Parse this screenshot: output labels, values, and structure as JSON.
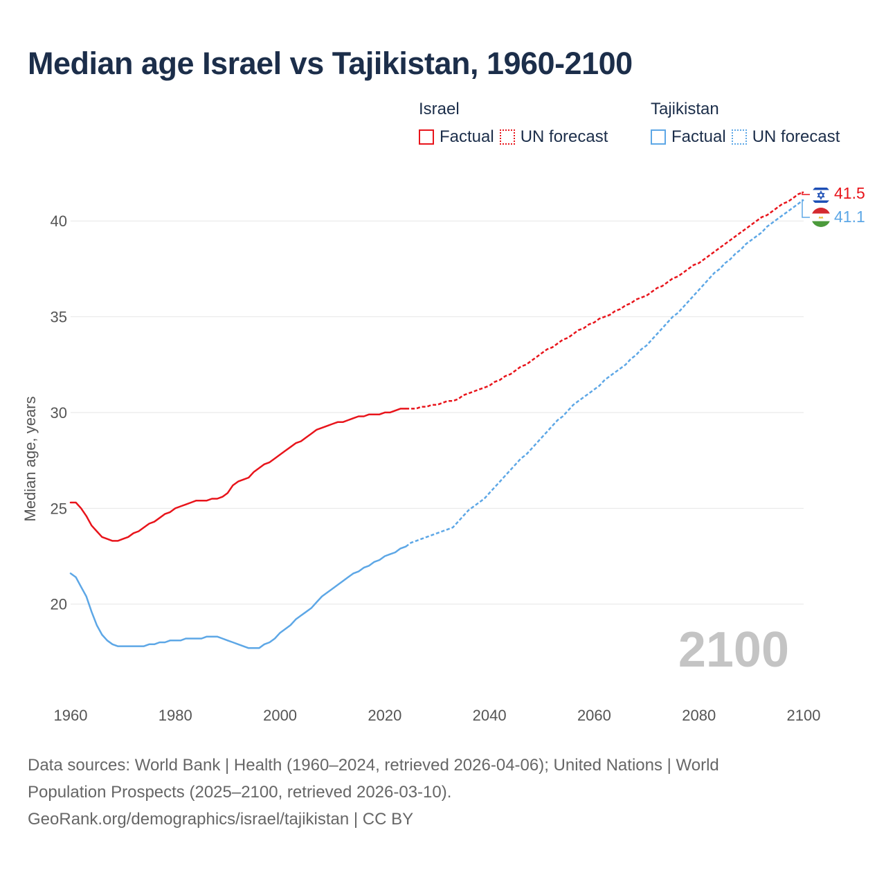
{
  "title": "Median age Israel vs Tajikistan, 1960-2100",
  "legend": {
    "israel": {
      "name": "Israel",
      "factual": "Factual",
      "forecast": "UN forecast",
      "color": "#e8141b"
    },
    "tajikistan": {
      "name": "Tajikistan",
      "factual": "Factual",
      "forecast": "UN forecast",
      "color": "#5da7e6"
    }
  },
  "year_watermark": "2100",
  "footer": {
    "line1": "Data sources: World Bank | Health (1960–2024, retrieved 2026-04-06); United Nations | World",
    "line2": "Population Prospects (2025–2100, retrieved 2026-03-10).",
    "line3": "GeoRank.org/demographics/israel/tajikistan | CC BY"
  },
  "chart_data": {
    "type": "line",
    "title": "Median age Israel vs Tajikistan, 1960-2100",
    "xlabel": "",
    "ylabel": "Median age, years",
    "xlim": [
      1960,
      2100
    ],
    "ylim": [
      15.4,
      42.5
    ],
    "xticks": [
      "1960",
      "1980",
      "2000",
      "2020",
      "2040",
      "2060",
      "2080",
      "2100"
    ],
    "yticks": [
      "20",
      "25",
      "30",
      "35",
      "40"
    ],
    "grid": true,
    "factual_end_year": 2024,
    "series": [
      {
        "name": "Israel",
        "color": "#e8141b",
        "end_label": "41.5",
        "flag": "israel-flag-icon",
        "points": [
          [
            1960,
            25.3
          ],
          [
            1961,
            25.3
          ],
          [
            1962,
            25.0
          ],
          [
            1963,
            24.6
          ],
          [
            1964,
            24.1
          ],
          [
            1965,
            23.8
          ],
          [
            1966,
            23.5
          ],
          [
            1967,
            23.4
          ],
          [
            1968,
            23.3
          ],
          [
            1969,
            23.3
          ],
          [
            1970,
            23.4
          ],
          [
            1971,
            23.5
          ],
          [
            1972,
            23.7
          ],
          [
            1973,
            23.8
          ],
          [
            1974,
            24.0
          ],
          [
            1975,
            24.2
          ],
          [
            1976,
            24.3
          ],
          [
            1977,
            24.5
          ],
          [
            1978,
            24.7
          ],
          [
            1979,
            24.8
          ],
          [
            1980,
            25.0
          ],
          [
            1981,
            25.1
          ],
          [
            1982,
            25.2
          ],
          [
            1983,
            25.3
          ],
          [
            1984,
            25.4
          ],
          [
            1985,
            25.4
          ],
          [
            1986,
            25.4
          ],
          [
            1987,
            25.5
          ],
          [
            1988,
            25.5
          ],
          [
            1989,
            25.6
          ],
          [
            1990,
            25.8
          ],
          [
            1991,
            26.2
          ],
          [
            1992,
            26.4
          ],
          [
            1993,
            26.5
          ],
          [
            1994,
            26.6
          ],
          [
            1995,
            26.9
          ],
          [
            1996,
            27.1
          ],
          [
            1997,
            27.3
          ],
          [
            1998,
            27.4
          ],
          [
            1999,
            27.6
          ],
          [
            2000,
            27.8
          ],
          [
            2001,
            28.0
          ],
          [
            2002,
            28.2
          ],
          [
            2003,
            28.4
          ],
          [
            2004,
            28.5
          ],
          [
            2005,
            28.7
          ],
          [
            2006,
            28.9
          ],
          [
            2007,
            29.1
          ],
          [
            2008,
            29.2
          ],
          [
            2009,
            29.3
          ],
          [
            2010,
            29.4
          ],
          [
            2011,
            29.5
          ],
          [
            2012,
            29.5
          ],
          [
            2013,
            29.6
          ],
          [
            2014,
            29.7
          ],
          [
            2015,
            29.8
          ],
          [
            2016,
            29.8
          ],
          [
            2017,
            29.9
          ],
          [
            2018,
            29.9
          ],
          [
            2019,
            29.9
          ],
          [
            2020,
            30.0
          ],
          [
            2021,
            30.0
          ],
          [
            2022,
            30.1
          ],
          [
            2023,
            30.2
          ],
          [
            2024,
            30.2
          ],
          [
            2025,
            30.2
          ],
          [
            2026,
            30.2
          ],
          [
            2027,
            30.3
          ],
          [
            2028,
            30.3
          ],
          [
            2029,
            30.4
          ],
          [
            2030,
            30.4
          ],
          [
            2031,
            30.5
          ],
          [
            2032,
            30.6
          ],
          [
            2033,
            30.6
          ],
          [
            2034,
            30.7
          ],
          [
            2035,
            30.9
          ],
          [
            2036,
            31.0
          ],
          [
            2037,
            31.1
          ],
          [
            2038,
            31.2
          ],
          [
            2039,
            31.3
          ],
          [
            2040,
            31.4
          ],
          [
            2041,
            31.6
          ],
          [
            2042,
            31.7
          ],
          [
            2043,
            31.9
          ],
          [
            2044,
            32.0
          ],
          [
            2045,
            32.2
          ],
          [
            2046,
            32.4
          ],
          [
            2047,
            32.5
          ],
          [
            2048,
            32.7
          ],
          [
            2049,
            32.9
          ],
          [
            2050,
            33.1
          ],
          [
            2051,
            33.3
          ],
          [
            2052,
            33.4
          ],
          [
            2053,
            33.6
          ],
          [
            2054,
            33.8
          ],
          [
            2055,
            33.9
          ],
          [
            2056,
            34.1
          ],
          [
            2057,
            34.3
          ],
          [
            2058,
            34.4
          ],
          [
            2059,
            34.6
          ],
          [
            2060,
            34.7
          ],
          [
            2061,
            34.9
          ],
          [
            2062,
            35.0
          ],
          [
            2063,
            35.1
          ],
          [
            2064,
            35.3
          ],
          [
            2065,
            35.4
          ],
          [
            2066,
            35.6
          ],
          [
            2067,
            35.7
          ],
          [
            2068,
            35.9
          ],
          [
            2069,
            36.0
          ],
          [
            2070,
            36.1
          ],
          [
            2071,
            36.3
          ],
          [
            2072,
            36.5
          ],
          [
            2073,
            36.6
          ],
          [
            2074,
            36.8
          ],
          [
            2075,
            37.0
          ],
          [
            2076,
            37.1
          ],
          [
            2077,
            37.3
          ],
          [
            2078,
            37.5
          ],
          [
            2079,
            37.7
          ],
          [
            2080,
            37.8
          ],
          [
            2081,
            38.0
          ],
          [
            2082,
            38.2
          ],
          [
            2083,
            38.4
          ],
          [
            2084,
            38.6
          ],
          [
            2085,
            38.8
          ],
          [
            2086,
            39.0
          ],
          [
            2087,
            39.2
          ],
          [
            2088,
            39.4
          ],
          [
            2089,
            39.6
          ],
          [
            2090,
            39.8
          ],
          [
            2091,
            40.0
          ],
          [
            2092,
            40.2
          ],
          [
            2093,
            40.3
          ],
          [
            2094,
            40.5
          ],
          [
            2095,
            40.7
          ],
          [
            2096,
            40.9
          ],
          [
            2097,
            41.0
          ],
          [
            2098,
            41.2
          ],
          [
            2099,
            41.4
          ],
          [
            2100,
            41.5
          ]
        ]
      },
      {
        "name": "Tajikistan",
        "color": "#5da7e6",
        "end_label": "41.1",
        "flag": "tajikistan-flag-icon",
        "points": [
          [
            1960,
            21.6
          ],
          [
            1961,
            21.4
          ],
          [
            1962,
            20.9
          ],
          [
            1963,
            20.4
          ],
          [
            1964,
            19.6
          ],
          [
            1965,
            18.9
          ],
          [
            1966,
            18.4
          ],
          [
            1967,
            18.1
          ],
          [
            1968,
            17.9
          ],
          [
            1969,
            17.8
          ],
          [
            1970,
            17.8
          ],
          [
            1971,
            17.8
          ],
          [
            1972,
            17.8
          ],
          [
            1973,
            17.8
          ],
          [
            1974,
            17.8
          ],
          [
            1975,
            17.9
          ],
          [
            1976,
            17.9
          ],
          [
            1977,
            18.0
          ],
          [
            1978,
            18.0
          ],
          [
            1979,
            18.1
          ],
          [
            1980,
            18.1
          ],
          [
            1981,
            18.1
          ],
          [
            1982,
            18.2
          ],
          [
            1983,
            18.2
          ],
          [
            1984,
            18.2
          ],
          [
            1985,
            18.2
          ],
          [
            1986,
            18.3
          ],
          [
            1987,
            18.3
          ],
          [
            1988,
            18.3
          ],
          [
            1989,
            18.2
          ],
          [
            1990,
            18.1
          ],
          [
            1991,
            18.0
          ],
          [
            1992,
            17.9
          ],
          [
            1993,
            17.8
          ],
          [
            1994,
            17.7
          ],
          [
            1995,
            17.7
          ],
          [
            1996,
            17.7
          ],
          [
            1997,
            17.9
          ],
          [
            1998,
            18.0
          ],
          [
            1999,
            18.2
          ],
          [
            2000,
            18.5
          ],
          [
            2001,
            18.7
          ],
          [
            2002,
            18.9
          ],
          [
            2003,
            19.2
          ],
          [
            2004,
            19.4
          ],
          [
            2005,
            19.6
          ],
          [
            2006,
            19.8
          ],
          [
            2007,
            20.1
          ],
          [
            2008,
            20.4
          ],
          [
            2009,
            20.6
          ],
          [
            2010,
            20.8
          ],
          [
            2011,
            21.0
          ],
          [
            2012,
            21.2
          ],
          [
            2013,
            21.4
          ],
          [
            2014,
            21.6
          ],
          [
            2015,
            21.7
          ],
          [
            2016,
            21.9
          ],
          [
            2017,
            22.0
          ],
          [
            2018,
            22.2
          ],
          [
            2019,
            22.3
          ],
          [
            2020,
            22.5
          ],
          [
            2021,
            22.6
          ],
          [
            2022,
            22.7
          ],
          [
            2023,
            22.9
          ],
          [
            2024,
            23.0
          ],
          [
            2025,
            23.2
          ],
          [
            2026,
            23.3
          ],
          [
            2027,
            23.4
          ],
          [
            2028,
            23.5
          ],
          [
            2029,
            23.6
          ],
          [
            2030,
            23.7
          ],
          [
            2031,
            23.8
          ],
          [
            2032,
            23.9
          ],
          [
            2033,
            24.0
          ],
          [
            2034,
            24.3
          ],
          [
            2035,
            24.6
          ],
          [
            2036,
            24.9
          ],
          [
            2037,
            25.1
          ],
          [
            2038,
            25.3
          ],
          [
            2039,
            25.5
          ],
          [
            2040,
            25.8
          ],
          [
            2041,
            26.1
          ],
          [
            2042,
            26.4
          ],
          [
            2043,
            26.7
          ],
          [
            2044,
            27.0
          ],
          [
            2045,
            27.3
          ],
          [
            2046,
            27.6
          ],
          [
            2047,
            27.8
          ],
          [
            2048,
            28.1
          ],
          [
            2049,
            28.4
          ],
          [
            2050,
            28.7
          ],
          [
            2051,
            29.0
          ],
          [
            2052,
            29.3
          ],
          [
            2053,
            29.6
          ],
          [
            2054,
            29.8
          ],
          [
            2055,
            30.1
          ],
          [
            2056,
            30.4
          ],
          [
            2057,
            30.6
          ],
          [
            2058,
            30.8
          ],
          [
            2059,
            31.0
          ],
          [
            2060,
            31.2
          ],
          [
            2061,
            31.4
          ],
          [
            2062,
            31.7
          ],
          [
            2063,
            31.9
          ],
          [
            2064,
            32.1
          ],
          [
            2065,
            32.3
          ],
          [
            2066,
            32.5
          ],
          [
            2067,
            32.8
          ],
          [
            2068,
            33.0
          ],
          [
            2069,
            33.3
          ],
          [
            2070,
            33.5
          ],
          [
            2071,
            33.8
          ],
          [
            2072,
            34.1
          ],
          [
            2073,
            34.4
          ],
          [
            2074,
            34.7
          ],
          [
            2075,
            35.0
          ],
          [
            2076,
            35.2
          ],
          [
            2077,
            35.5
          ],
          [
            2078,
            35.8
          ],
          [
            2079,
            36.1
          ],
          [
            2080,
            36.4
          ],
          [
            2081,
            36.7
          ],
          [
            2082,
            37.0
          ],
          [
            2083,
            37.3
          ],
          [
            2084,
            37.5
          ],
          [
            2085,
            37.8
          ],
          [
            2086,
            38.0
          ],
          [
            2087,
            38.3
          ],
          [
            2088,
            38.5
          ],
          [
            2089,
            38.8
          ],
          [
            2090,
            39.0
          ],
          [
            2091,
            39.2
          ],
          [
            2092,
            39.4
          ],
          [
            2093,
            39.7
          ],
          [
            2094,
            39.9
          ],
          [
            2095,
            40.1
          ],
          [
            2096,
            40.3
          ],
          [
            2097,
            40.5
          ],
          [
            2098,
            40.7
          ],
          [
            2099,
            40.9
          ],
          [
            2100,
            41.1
          ]
        ]
      }
    ]
  }
}
